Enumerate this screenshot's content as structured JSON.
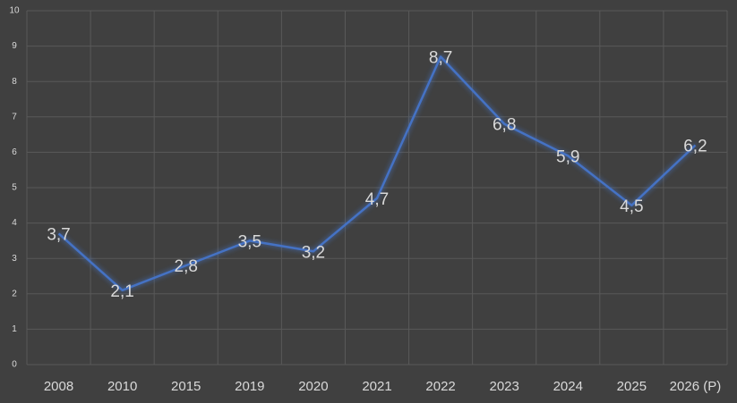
{
  "chart_data": {
    "type": "line",
    "categories": [
      "2008",
      "2010",
      "2015",
      "2019",
      "2020",
      "2021",
      "2022",
      "2023",
      "2024",
      "2025",
      "2026 (P)"
    ],
    "values": [
      3.7,
      2.1,
      2.8,
      3.5,
      3.2,
      4.7,
      8.7,
      6.8,
      5.9,
      4.5,
      6.2
    ],
    "value_labels": [
      "3,7",
      "2,1",
      "2,8",
      "3,5",
      "3,2",
      "4,7",
      "8,7",
      "6,8",
      "5,9",
      "4,5",
      "6,2"
    ],
    "color": "#4472c4",
    "ylim": [
      0,
      10
    ],
    "yticks": [
      0,
      1,
      2,
      3,
      4,
      5,
      6,
      7,
      8,
      9,
      10
    ],
    "grid": true
  }
}
